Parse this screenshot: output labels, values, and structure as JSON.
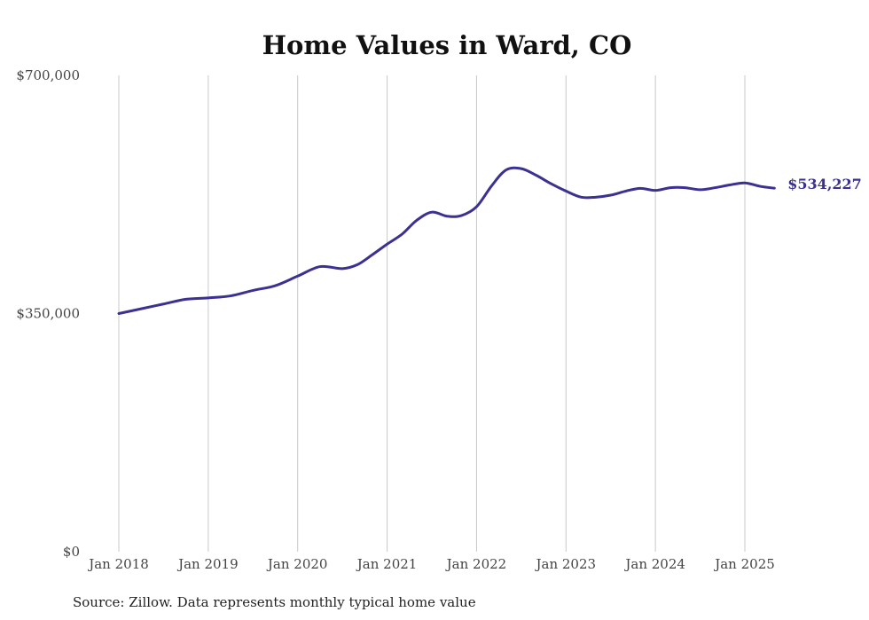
{
  "chart_data": {
    "type": "line",
    "title": "Home Values in Ward, CO",
    "source": "Source: Zillow. Data represents monthly typical home value",
    "xlabel": "",
    "ylabel": "",
    "ylim": [
      0,
      700000
    ],
    "y_ticks": [
      {
        "value": 0,
        "label": "$0"
      },
      {
        "value": 350000,
        "label": "$350,000"
      },
      {
        "value": 700000,
        "label": "$700,000"
      }
    ],
    "x_ticks": [
      {
        "value": 2018.0,
        "label": "Jan 2018"
      },
      {
        "value": 2019.0,
        "label": "Jan 2019"
      },
      {
        "value": 2020.0,
        "label": "Jan 2020"
      },
      {
        "value": 2021.0,
        "label": "Jan 2021"
      },
      {
        "value": 2022.0,
        "label": "Jan 2022"
      },
      {
        "value": 2023.0,
        "label": "Jan 2023"
      },
      {
        "value": 2024.0,
        "label": "Jan 2024"
      },
      {
        "value": 2025.0,
        "label": "Jan 2025"
      }
    ],
    "grid": "vertical",
    "line_color": "#3a3192",
    "end_label": "$534,227",
    "series": [
      {
        "points": [
          [
            2018.0,
            350000
          ],
          [
            2018.25,
            357000
          ],
          [
            2018.5,
            364000
          ],
          [
            2018.75,
            371000
          ],
          [
            2019.0,
            373000
          ],
          [
            2019.25,
            376000
          ],
          [
            2019.5,
            384000
          ],
          [
            2019.75,
            391000
          ],
          [
            2020.0,
            405000
          ],
          [
            2020.25,
            419000
          ],
          [
            2020.5,
            416000
          ],
          [
            2020.67,
            422000
          ],
          [
            2020.83,
            436000
          ],
          [
            2021.0,
            452000
          ],
          [
            2021.17,
            467000
          ],
          [
            2021.33,
            487000
          ],
          [
            2021.5,
            499000
          ],
          [
            2021.67,
            493000
          ],
          [
            2021.83,
            494000
          ],
          [
            2022.0,
            507000
          ],
          [
            2022.17,
            538000
          ],
          [
            2022.33,
            561000
          ],
          [
            2022.5,
            563000
          ],
          [
            2022.67,
            553000
          ],
          [
            2022.83,
            541000
          ],
          [
            2023.0,
            530000
          ],
          [
            2023.17,
            521000
          ],
          [
            2023.33,
            521000
          ],
          [
            2023.5,
            524000
          ],
          [
            2023.67,
            530000
          ],
          [
            2023.83,
            534000
          ],
          [
            2024.0,
            531000
          ],
          [
            2024.17,
            535000
          ],
          [
            2024.33,
            535000
          ],
          [
            2024.5,
            532000
          ],
          [
            2024.67,
            535000
          ],
          [
            2024.83,
            539000
          ],
          [
            2025.0,
            542000
          ],
          [
            2025.17,
            537000
          ],
          [
            2025.33,
            534227
          ]
        ]
      }
    ]
  }
}
